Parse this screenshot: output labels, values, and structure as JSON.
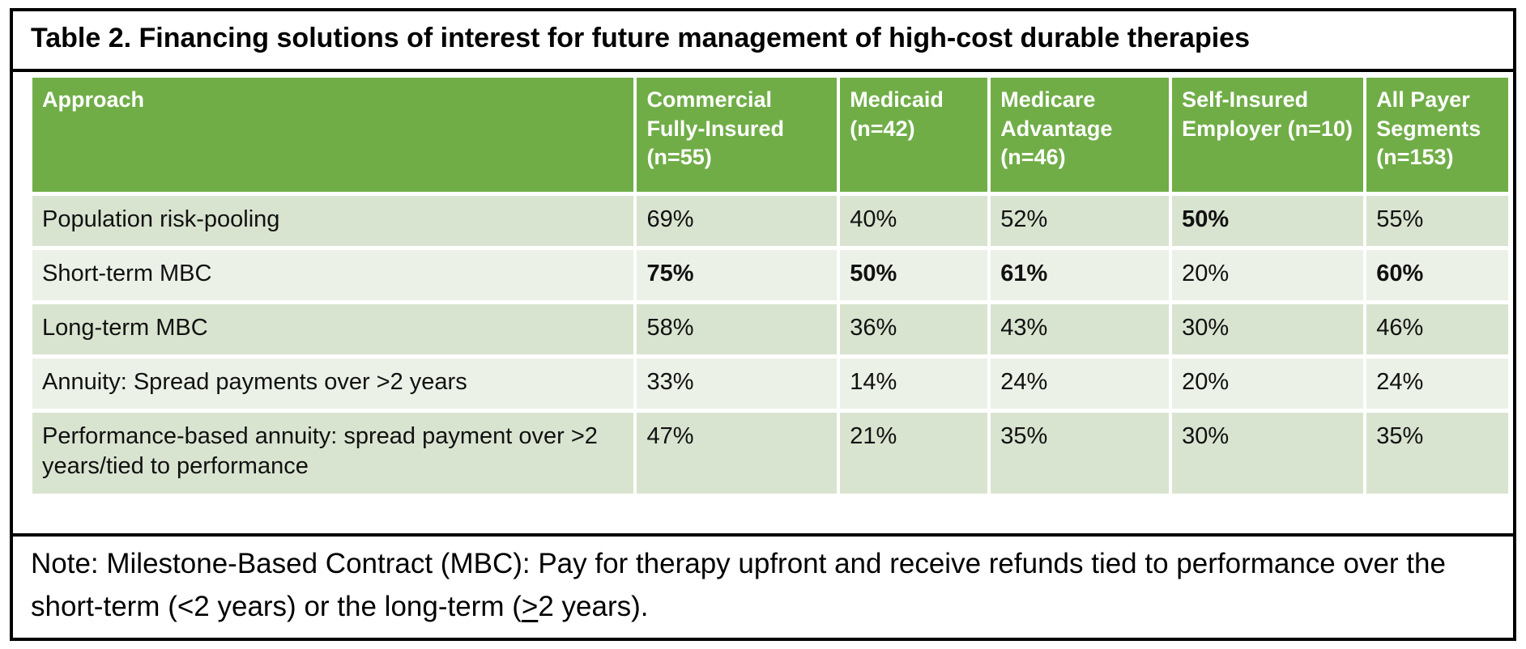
{
  "title": "Table 2. Financing solutions of interest for future management of high-cost durable therapies",
  "colors": {
    "header_green": "#70AD47",
    "row_band_dark": "#D9E4D0",
    "row_band_light": "#EBF1E7",
    "header_text": "#FFFFFF",
    "border": "#000000"
  },
  "table": {
    "columns": [
      {
        "label": "Approach"
      },
      {
        "label": "Commercial Fully-Insured (n=55)"
      },
      {
        "label": "Medicaid (n=42)"
      },
      {
        "label": "Medicare Advantage (n=46)"
      },
      {
        "label": "Self-Insured Employer (n=10)"
      },
      {
        "label": "All Payer Segments (n=153)"
      }
    ],
    "rows": [
      {
        "approach": "Population risk-pooling",
        "cells": [
          {
            "text": "69%",
            "bold": false
          },
          {
            "text": "40%",
            "bold": false
          },
          {
            "text": "52%",
            "bold": false
          },
          {
            "text": "50%",
            "bold": true
          },
          {
            "text": "55%",
            "bold": false
          }
        ]
      },
      {
        "approach": "Short-term MBC",
        "cells": [
          {
            "text": "75%",
            "bold": true
          },
          {
            "text": "50%",
            "bold": true
          },
          {
            "text": "61%",
            "bold": true
          },
          {
            "text": "20%",
            "bold": false
          },
          {
            "text": "60%",
            "bold": true
          }
        ]
      },
      {
        "approach": "Long-term MBC",
        "cells": [
          {
            "text": "58%",
            "bold": false
          },
          {
            "text": "36%",
            "bold": false
          },
          {
            "text": "43%",
            "bold": false
          },
          {
            "text": "30%",
            "bold": false
          },
          {
            "text": "46%",
            "bold": false
          }
        ]
      },
      {
        "approach": "Annuity: Spread payments over >2 years",
        "cells": [
          {
            "text": "33%",
            "bold": false
          },
          {
            "text": "14%",
            "bold": false
          },
          {
            "text": "24%",
            "bold": false
          },
          {
            "text": "20%",
            "bold": false
          },
          {
            "text": "24%",
            "bold": false
          }
        ]
      },
      {
        "approach": "Performance-based annuity: spread payment over >2 years/tied to performance",
        "cells": [
          {
            "text": "47%",
            "bold": false
          },
          {
            "text": "21%",
            "bold": false
          },
          {
            "text": "35%",
            "bold": false
          },
          {
            "text": "30%",
            "bold": false
          },
          {
            "text": "35%",
            "bold": false
          }
        ]
      }
    ]
  },
  "note": {
    "prefix": "Note: Milestone-Based Contract (MBC): Pay for therapy upfront and receive refunds tied to performance over the short-term (<2 years) or the long-term (",
    "ge_symbol": ">",
    "suffix": "2 years)."
  }
}
